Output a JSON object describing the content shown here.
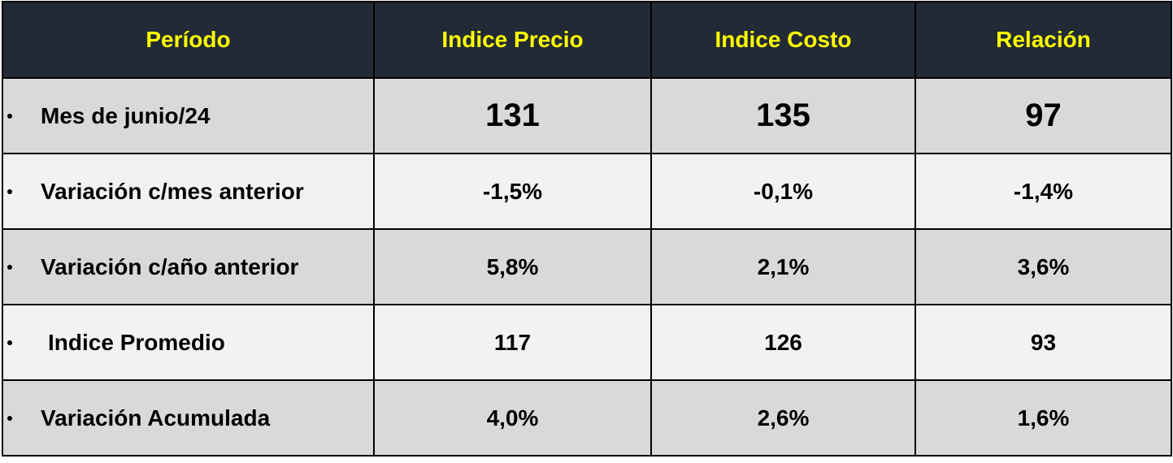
{
  "table": {
    "header": [
      "Período",
      "Indice Precio",
      "Indice Costo",
      "Relación"
    ],
    "rows": [
      [
        "Mes de junio/24",
        "131",
        "135",
        "97"
      ],
      [
        "Variación c/mes anterior",
        "-1,5%",
        "-0,1%",
        "-1,4%"
      ],
      [
        "Variación c/año anterior",
        "5,8%",
        "2,1%",
        "3,6%"
      ],
      [
        "Indice Promedio",
        "117",
        "126",
        "93"
      ],
      [
        "Variación Acumulada",
        "4,0%",
        "2,6%",
        "1,6%"
      ]
    ]
  }
}
